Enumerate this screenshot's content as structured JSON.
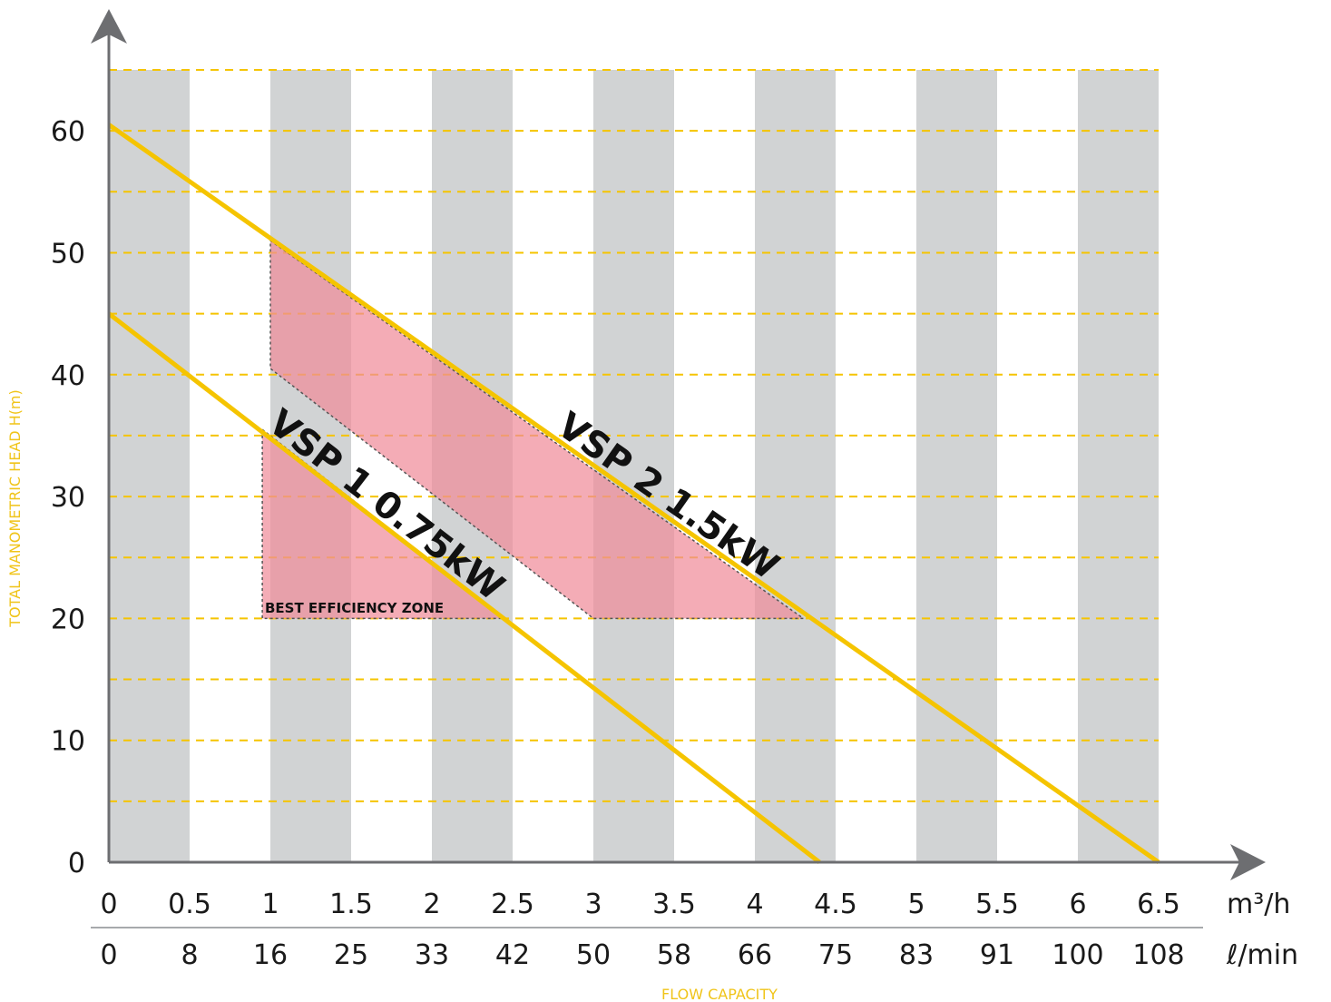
{
  "chart_data": {
    "type": "line",
    "xlabel": "FLOW CAPACITY",
    "ylabel": "TOTAL MANOMETRIC HEAD H(m)",
    "xlim": [
      0,
      6.5
    ],
    "ylim": [
      0,
      65
    ],
    "x_ticks_m3h": [
      "0",
      "0.5",
      "1",
      "1.5",
      "2",
      "2.5",
      "3",
      "3.5",
      "4",
      "4.5",
      "5",
      "5.5",
      "6",
      "6.5"
    ],
    "x_ticks_lmin": [
      "0",
      "8",
      "16",
      "25",
      "33",
      "42",
      "50",
      "58",
      "66",
      "75",
      "83",
      "91",
      "100",
      "108"
    ],
    "x_unit_primary": "m³/h",
    "x_unit_secondary": "ℓ/min",
    "y_ticks": [
      "0",
      "10",
      "20",
      "30",
      "40",
      "50",
      "60"
    ],
    "series": [
      {
        "name": "VSP 2 1.5kW",
        "x": [
          0,
          6.5
        ],
        "y": [
          60.5,
          0
        ],
        "color": "#f5c400"
      },
      {
        "name": "VSP 1 0.75kW",
        "x": [
          0,
          4.4
        ],
        "y": [
          45,
          0
        ],
        "color": "#f5c400"
      }
    ],
    "zones": [
      {
        "label": "BEST EFFICIENCY ZONE",
        "polygon": [
          [
            1,
            51
          ],
          [
            4.3,
            20
          ],
          [
            3,
            20
          ],
          [
            1,
            40.5
          ]
        ]
      },
      {
        "label": "",
        "polygon": [
          [
            0.95,
            35.5
          ],
          [
            2.45,
            20
          ],
          [
            0.95,
            20
          ]
        ]
      }
    ],
    "zone_label": "BEST EFFICIENCY ZONE",
    "grid": true,
    "grid_style": "dashed",
    "grid_color": "#f5c400",
    "band_color": "#d1d3d4",
    "zone_color": "#f08c9a"
  }
}
